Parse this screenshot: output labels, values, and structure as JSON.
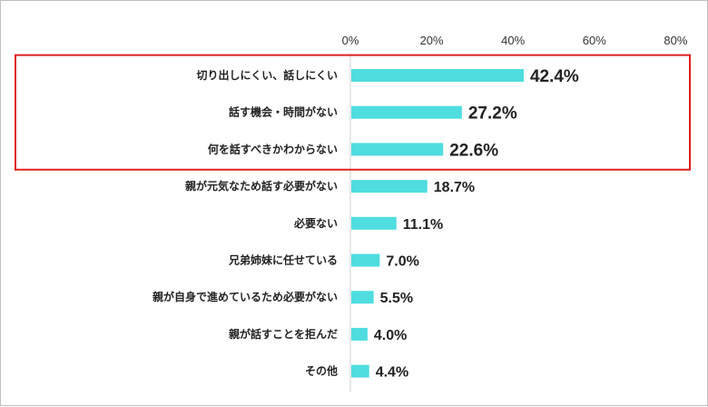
{
  "chart_data": {
    "type": "bar",
    "orientation": "horizontal",
    "categories": [
      "切り出しにくい、話しにくい",
      "話す機会・時間がない",
      "何を話すべきかわからない",
      "親が元気なため話す必要がない",
      "必要ない",
      "兄弟姉妹に任せている",
      "親が自身で進めているため必要がない",
      "親が話すことを拒んだ",
      "その他"
    ],
    "values": [
      42.4,
      27.2,
      22.6,
      18.7,
      11.1,
      7.0,
      5.5,
      4.0,
      4.4
    ],
    "value_labels": [
      "42.4%",
      "27.2%",
      "22.6%",
      "18.7%",
      "11.1%",
      "7.0%",
      "5.5%",
      "4.0%",
      "4.4%"
    ],
    "xlim": [
      0,
      80
    ],
    "x_ticks": [
      "0%",
      "20%",
      "40%",
      "60%",
      "80%"
    ],
    "highlighted_categories_count": 3,
    "bar_color": "#4fdde0",
    "highlight_color": "#e02020",
    "axis_position": "top",
    "grid": false,
    "legend": "none"
  }
}
